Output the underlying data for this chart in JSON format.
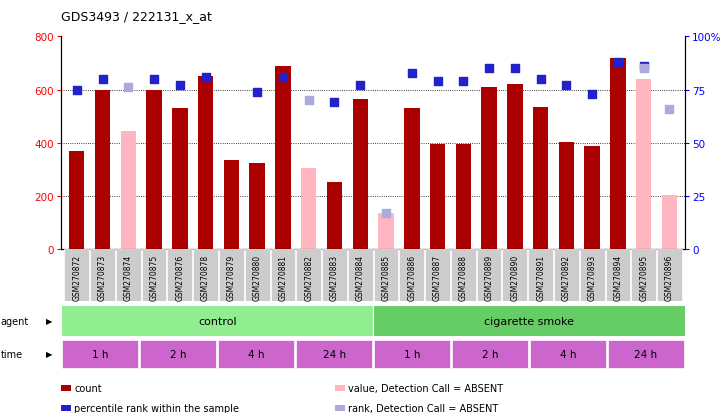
{
  "title": "GDS3493 / 222131_x_at",
  "samples": [
    "GSM270872",
    "GSM270873",
    "GSM270874",
    "GSM270875",
    "GSM270876",
    "GSM270878",
    "GSM270879",
    "GSM270880",
    "GSM270881",
    "GSM270882",
    "GSM270883",
    "GSM270884",
    "GSM270885",
    "GSM270886",
    "GSM270887",
    "GSM270888",
    "GSM270889",
    "GSM270890",
    "GSM270891",
    "GSM270892",
    "GSM270893",
    "GSM270894",
    "GSM270895",
    "GSM270896"
  ],
  "count_values": [
    370,
    600,
    null,
    600,
    530,
    650,
    335,
    325,
    690,
    null,
    255,
    565,
    null,
    530,
    395,
    395,
    610,
    620,
    535,
    405,
    390,
    720,
    null,
    null
  ],
  "absent_count_values": [
    null,
    null,
    445,
    null,
    null,
    null,
    null,
    null,
    null,
    305,
    null,
    null,
    135,
    null,
    null,
    null,
    null,
    null,
    null,
    null,
    null,
    null,
    640,
    205
  ],
  "rank_values": [
    75,
    80,
    null,
    80,
    77,
    81,
    null,
    74,
    81,
    null,
    69,
    77,
    null,
    83,
    79,
    79,
    85,
    85,
    80,
    77,
    73,
    88,
    86,
    null
  ],
  "absent_rank_values": [
    null,
    null,
    76,
    null,
    null,
    null,
    null,
    null,
    null,
    70,
    null,
    null,
    17,
    null,
    null,
    null,
    null,
    null,
    null,
    null,
    null,
    null,
    85,
    66
  ],
  "ylim_left": [
    0,
    800
  ],
  "ylim_right": [
    0,
    100
  ],
  "yticks_left": [
    0,
    200,
    400,
    600,
    800
  ],
  "yticks_right": [
    0,
    25,
    50,
    75,
    100
  ],
  "bar_color": "#AA0000",
  "absent_bar_color": "#FFB6C1",
  "rank_color": "#2222CC",
  "absent_rank_color": "#AAAADD",
  "control_color": "#90EE90",
  "smoke_color": "#66CC66",
  "time_color": "#CC66CC",
  "agent_groups": [
    {
      "label": "control",
      "start": 0,
      "end": 12
    },
    {
      "label": "cigarette smoke",
      "start": 12,
      "end": 24
    }
  ],
  "time_groups": [
    {
      "label": "1 h",
      "start": 0,
      "end": 3
    },
    {
      "label": "2 h",
      "start": 3,
      "end": 6
    },
    {
      "label": "4 h",
      "start": 6,
      "end": 9
    },
    {
      "label": "24 h",
      "start": 9,
      "end": 12
    },
    {
      "label": "1 h",
      "start": 12,
      "end": 15
    },
    {
      "label": "2 h",
      "start": 15,
      "end": 18
    },
    {
      "label": "4 h",
      "start": 18,
      "end": 21
    },
    {
      "label": "24 h",
      "start": 21,
      "end": 24
    }
  ],
  "legend_items": [
    {
      "label": "count",
      "color": "#AA0000"
    },
    {
      "label": "percentile rank within the sample",
      "color": "#2222CC"
    },
    {
      "label": "value, Detection Call = ABSENT",
      "color": "#FFB6C1"
    },
    {
      "label": "rank, Detection Call = ABSENT",
      "color": "#AAAADD"
    }
  ]
}
